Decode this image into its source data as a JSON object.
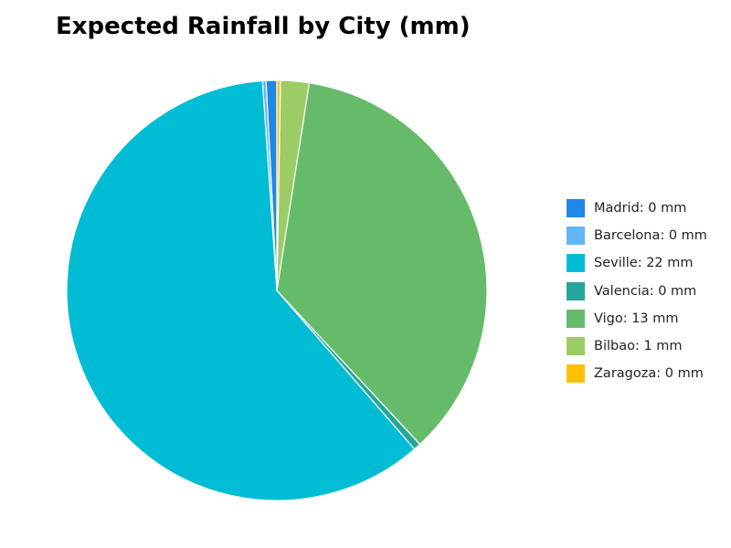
{
  "chart_data": {
    "type": "pie",
    "title": "Expected Rainfall by City (mm)",
    "categories": [
      "Madrid",
      "Barcelona",
      "Seville",
      "Valencia",
      "Vigo",
      "Bilbao",
      "Zaragoza"
    ],
    "values": [
      0.3,
      0.1,
      22,
      0.2,
      13,
      0.8,
      0.1
    ],
    "colors": [
      "#1E88E5",
      "#64B5F6",
      "#00BCD4",
      "#26A69A",
      "#66BB6A",
      "#9CCC65",
      "#FFC107"
    ],
    "legend_labels": [
      "Madrid: 0 mm",
      "Barcelona: 0 mm",
      "Seville: 22 mm",
      "Valencia: 0 mm",
      "Vigo: 13 mm",
      "Bilbao: 1 mm",
      "Zaragoza: 0 mm"
    ],
    "legend_position": "right",
    "start_angle": "top",
    "direction": "counterclockwise"
  }
}
